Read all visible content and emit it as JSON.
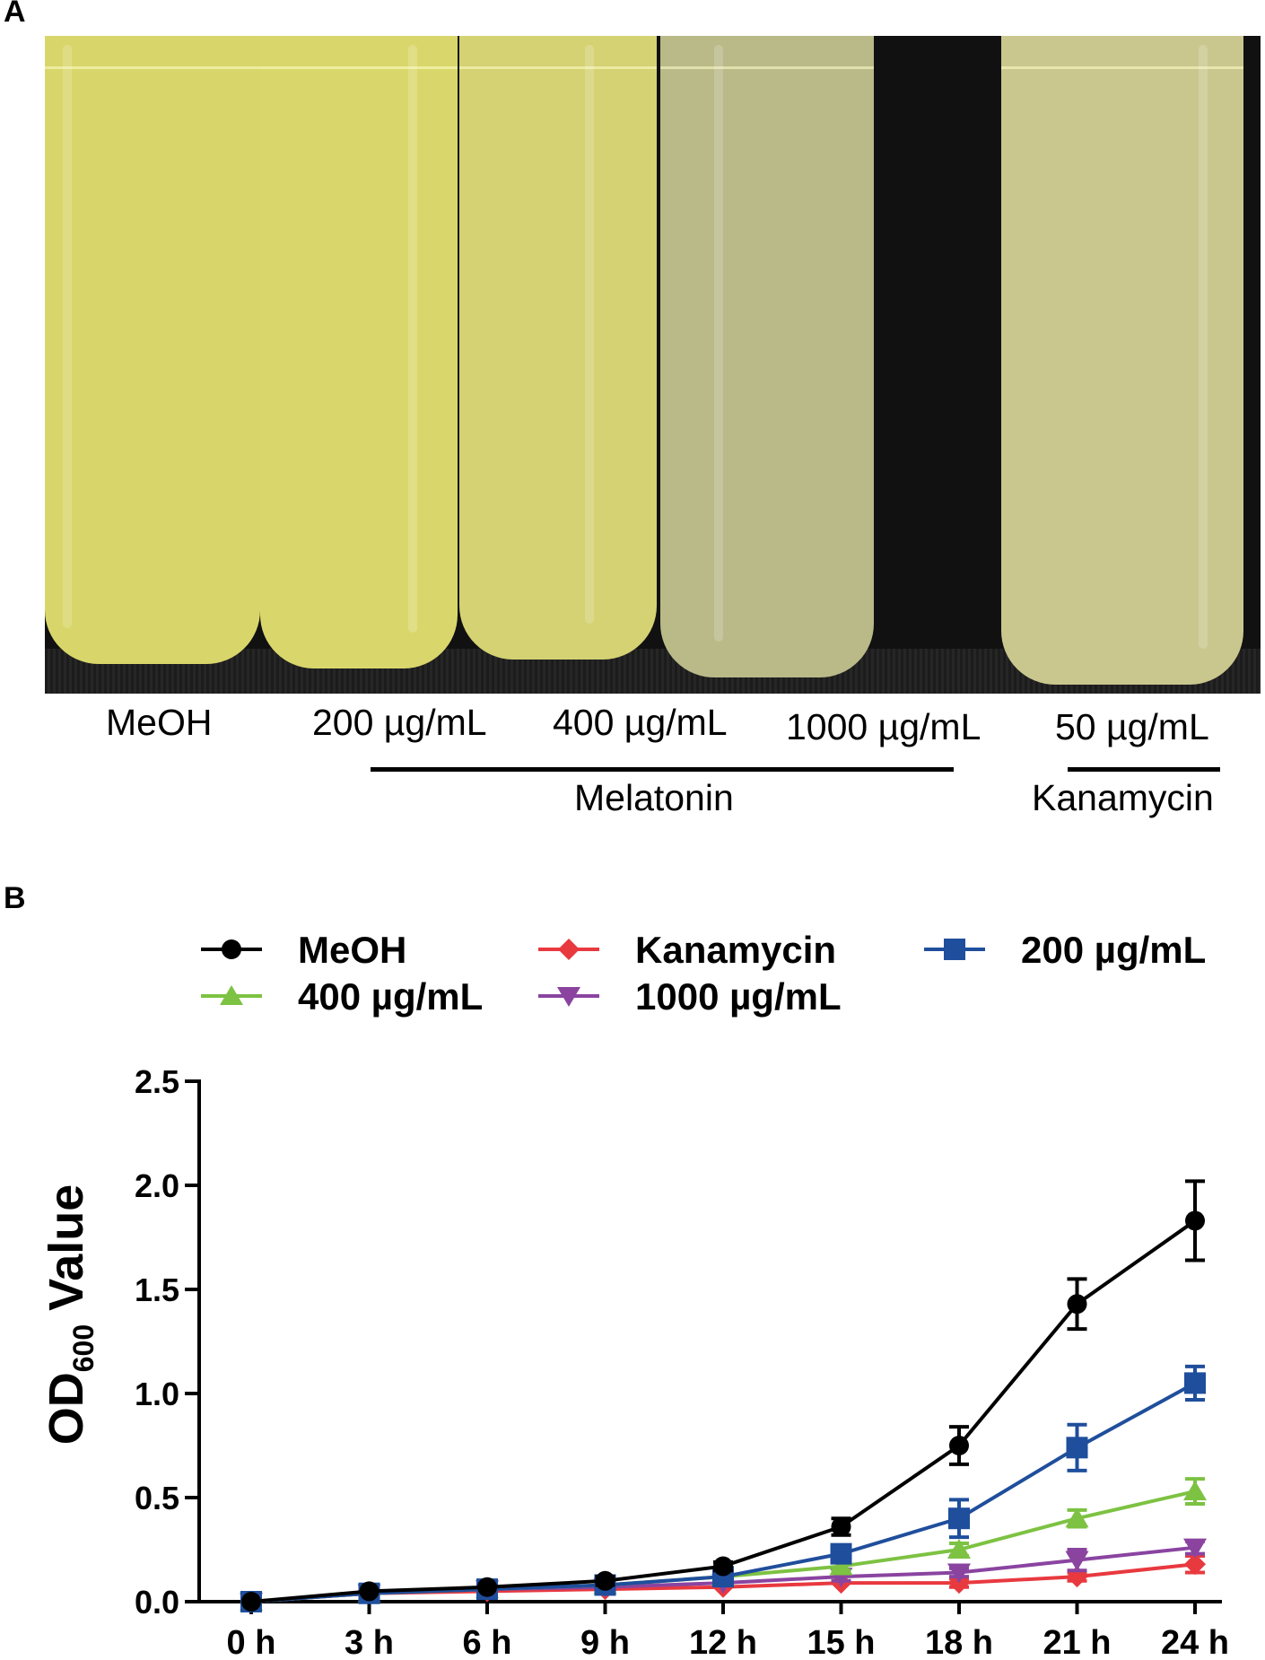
{
  "panel_a": {
    "letter": "A",
    "tube_labels": [
      "MeOH",
      "200 µg/mL",
      "400 µg/mL",
      "1000 µg/mL",
      "50 µg/mL"
    ],
    "group_melatonin": "Melatonin",
    "group_kanamycin": "Kanamycin",
    "tube_colors": [
      "#d8d66a",
      "#d9d76c",
      "#d4d273",
      "#b9ba88",
      "#c9c78e"
    ]
  },
  "panel_b": {
    "letter": "B"
  },
  "chart_data": {
    "type": "line",
    "ylabel": "OD",
    "ylabel_sub": "600",
    "ylabel_rest": " Value",
    "xlabel": "",
    "categories": [
      "0 h",
      "3 h",
      "6 h",
      "9 h",
      "12 h",
      "15 h",
      "18 h",
      "21 h",
      "24 h"
    ],
    "ylim": [
      0,
      2.5
    ],
    "yticks": [
      "0.0",
      "0.5",
      "1.0",
      "1.5",
      "2.0",
      "2.5"
    ],
    "ytick_values": [
      0,
      0.5,
      1.0,
      1.5,
      2.0,
      2.5
    ],
    "legend_position": "top",
    "series": [
      {
        "name": "MeOH",
        "marker": "circle",
        "color": "#000000",
        "values": [
          0.0,
          0.05,
          0.07,
          0.1,
          0.17,
          0.36,
          0.75,
          1.43,
          1.83
        ],
        "errors": [
          0.01,
          0.01,
          0.01,
          0.02,
          0.02,
          0.04,
          0.09,
          0.12,
          0.19
        ]
      },
      {
        "name": "400 µg/mL",
        "marker": "triangle-up",
        "color": "#7dc242",
        "values": [
          0.0,
          0.04,
          0.06,
          0.08,
          0.12,
          0.17,
          0.25,
          0.4,
          0.53
        ],
        "errors": [
          0.01,
          0.01,
          0.01,
          0.01,
          0.02,
          0.02,
          0.03,
          0.04,
          0.06
        ]
      },
      {
        "name": "Kanamycin",
        "marker": "diamond",
        "color": "#e8393f",
        "values": [
          0.0,
          0.04,
          0.05,
          0.06,
          0.07,
          0.09,
          0.09,
          0.12,
          0.18
        ],
        "errors": [
          0.01,
          0.01,
          0.01,
          0.01,
          0.01,
          0.01,
          0.02,
          0.02,
          0.04
        ]
      },
      {
        "name": "1000 µg/mL",
        "marker": "triangle-down",
        "color": "#8a44a0",
        "values": [
          0.0,
          0.04,
          0.06,
          0.07,
          0.09,
          0.12,
          0.14,
          0.2,
          0.26
        ],
        "errors": [
          0.01,
          0.01,
          0.01,
          0.01,
          0.01,
          0.02,
          0.02,
          0.05,
          0.03
        ]
      },
      {
        "name": "200 µg/mL",
        "marker": "square",
        "color": "#1f4e9c",
        "values": [
          0.0,
          0.04,
          0.06,
          0.08,
          0.12,
          0.23,
          0.4,
          0.74,
          1.05
        ],
        "errors": [
          0.01,
          0.01,
          0.01,
          0.01,
          0.02,
          0.03,
          0.09,
          0.11,
          0.08
        ]
      }
    ]
  }
}
